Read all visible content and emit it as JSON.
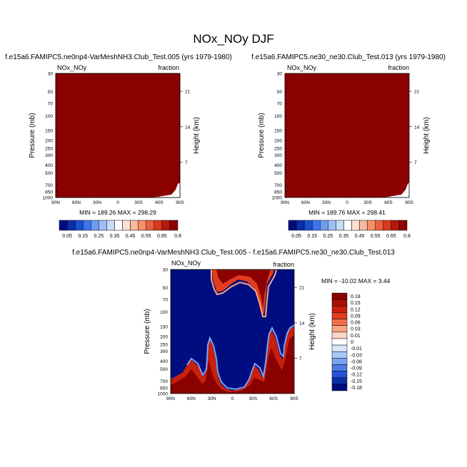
{
  "figure": {
    "title": "NOx_NOy DJF",
    "diff_title": "f.e15a6.FAMIPC5.ne0np4-VarMeshNH3.Club_Test.005 - f.e15a6.FAMIPC5.ne30_ne30.Club_Test.013"
  },
  "panels": {
    "left": {
      "case": "f.e15a6.FAMIPC5.ne0np4-VarMeshNH3.Club_Test.005 (yrs 1979-1980)",
      "var": "NOx_NOy",
      "units": "fraction",
      "minmax": "MIN = 189.26   MAX = 298.29"
    },
    "right": {
      "case": "f.e15a6.FAMIPC5.ne30_ne30.Club_Test.013 (yrs 1979-1980)",
      "var": "NOx_NOy",
      "units": "fraction",
      "minmax": "MIN = 189.76   MAX = 298.41"
    },
    "diff": {
      "var": "NOx_NOy",
      "units": "fraction",
      "minmax": "MIN = -10.02  MAX =   3.44"
    }
  },
  "chart_data": [
    {
      "type": "heatmap",
      "title": "f.e15a6.FAMIPC5.ne0np4-VarMeshNH3.Club_Test.005 (yrs 1979-1980)",
      "xlabel": "",
      "ylabel": "Pressure (mb)",
      "ylabel_right": "Height (km)",
      "x_ticks": [
        "90N",
        "60N",
        "30N",
        "0",
        "30S",
        "60S",
        "90S"
      ],
      "y_ticks": [
        "30",
        "50",
        "70",
        "100",
        "150",
        "200",
        "250",
        "300",
        "400",
        "500",
        "700",
        "850",
        "1000"
      ],
      "height_ticks": [
        "21",
        "14",
        "7"
      ],
      "colorbar": [
        "0.05",
        "0.15",
        "0.25",
        "0.35",
        "0.45",
        "0.55",
        "0.65",
        "0.8"
      ],
      "dominant_value": ">0.8 (field saturated)"
    },
    {
      "type": "heatmap",
      "title": "f.e15a6.FAMIPC5.ne30_ne30.Club_Test.013 (yrs 1979-1980)",
      "xlabel": "",
      "ylabel": "Pressure (mb)",
      "ylabel_right": "Height (km)",
      "x_ticks": [
        "90N",
        "60N",
        "30N",
        "0",
        "30S",
        "60S",
        "90S"
      ],
      "y_ticks": [
        "30",
        "50",
        "70",
        "100",
        "150",
        "200",
        "250",
        "300",
        "400",
        "500",
        "700",
        "850",
        "1000"
      ],
      "height_ticks": [
        "21",
        "14",
        "7"
      ],
      "colorbar": [
        "0.05",
        "0.15",
        "0.25",
        "0.35",
        "0.45",
        "0.55",
        "0.65",
        "0.8"
      ],
      "dominant_value": ">0.8 (field saturated)"
    },
    {
      "type": "heatmap",
      "title": "f.e15a6.FAMIPC5.ne0np4-VarMeshNH3.Club_Test.005 - f.e15a6.FAMIPC5.ne30_ne30.Club_Test.013",
      "xlabel": "",
      "ylabel": "Pressure (mb)",
      "ylabel_right": "Height (km)",
      "x_ticks": [
        "90N",
        "60N",
        "30N",
        "0",
        "30S",
        "60S",
        "90S"
      ],
      "y_ticks": [
        "30",
        "50",
        "70",
        "100",
        "150",
        "200",
        "250",
        "300",
        "400",
        "500",
        "700",
        "850",
        "1000"
      ],
      "height_ticks": [
        "21",
        "14",
        "7"
      ],
      "colorbar": [
        "0.18",
        "0.15",
        "0.12",
        "0.09",
        "0.06",
        "0.03",
        "0.01",
        "0",
        "-0.01",
        "-0.03",
        "-0.06",
        "-0.09",
        "-0.12",
        "-0.15",
        "-0.18"
      ],
      "dominant_value": "< -0.18 over most of domain; positive features near upper stratosphere and lower troposphere"
    }
  ],
  "colors": {
    "saturated_high": "#8b0000",
    "saturated_low": "#000d80",
    "seq_colorbar": [
      "#000d80",
      "#0a2fa8",
      "#1c50d0",
      "#3f75ea",
      "#6e9bf2",
      "#9ebff6",
      "#c7dbfa",
      "#ffffff",
      "#fde0cf",
      "#fbb89a",
      "#f68e6a",
      "#ea5f3f",
      "#d83a1e",
      "#b8170c",
      "#8b0000"
    ],
    "diff_colorbar": [
      "#8b0000",
      "#a90f06",
      "#c7200c",
      "#e23c1c",
      "#f0704a",
      "#f7a585",
      "#fcd5c4",
      "#ffffff",
      "#d8e6fb",
      "#a9c6f5",
      "#7aa3ef",
      "#4d7ce6",
      "#2553d4",
      "#0c2fa8",
      "#000d80"
    ]
  }
}
